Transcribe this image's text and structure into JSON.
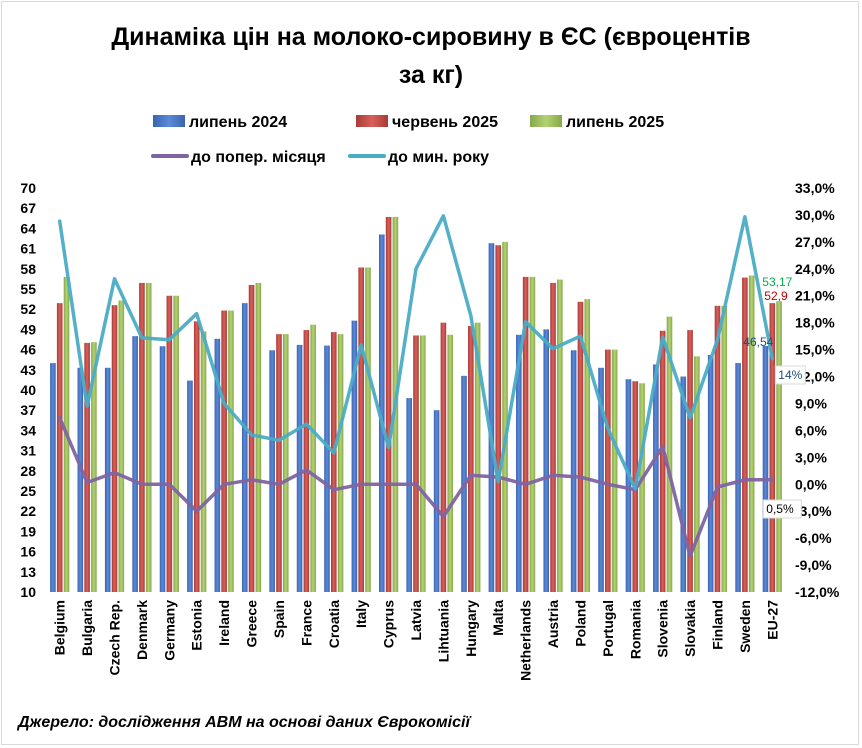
{
  "title_line1": "Динаміка цін на молоко-сировину в ЄС (євроцентів",
  "title_line2": "за кг)",
  "source": "Джерело: дослідження АВМ на основі даних Єврокомісії",
  "colors": {
    "jul2024": "#4472c4",
    "jun2025": "#c0504d",
    "jul2025": "#9bbb59",
    "mom": "#8064a2",
    "yoy": "#4bacc6"
  },
  "chart_data": {
    "type": "bar",
    "categories": [
      "Belgium",
      "Bulgaria",
      "Czech Rep.",
      "Denmark",
      "Germany",
      "Estonia",
      "Ireland",
      "Greece",
      "Spain",
      "France",
      "Croatia",
      "Italy",
      "Cyprus",
      "Latvia",
      "Lihtuania",
      "Hungary",
      "Malta",
      "Netherlands",
      "Austria",
      "Poland",
      "Portugal",
      "Romania",
      "Slovenia",
      "Slovakia",
      "Finland",
      "Sweden",
      "EU-27"
    ],
    "series": [
      {
        "name": "липень 2024",
        "type": "bar",
        "axis": "left",
        "values": [
          44.0,
          43.3,
          43.3,
          48.0,
          46.5,
          41.4,
          47.6,
          52.9,
          45.9,
          46.7,
          46.6,
          50.3,
          63.1,
          38.8,
          37.0,
          42.1,
          61.8,
          48.2,
          49.0,
          45.9,
          43.3,
          41.6,
          43.8,
          42.0,
          45.2,
          44.0,
          46.54
        ]
      },
      {
        "name": "червень 2025",
        "type": "bar",
        "axis": "left",
        "values": [
          52.9,
          47.0,
          52.6,
          55.9,
          54.0,
          50.2,
          51.8,
          55.6,
          48.3,
          48.9,
          48.6,
          58.2,
          65.7,
          48.1,
          50.0,
          49.5,
          61.5,
          56.8,
          55.9,
          53.1,
          46.0,
          41.3,
          48.8,
          48.9,
          52.5,
          56.7,
          52.9
        ]
      },
      {
        "name": "липень 2025",
        "type": "bar",
        "axis": "left",
        "values": [
          56.8,
          47.1,
          53.3,
          55.9,
          54.0,
          48.7,
          51.8,
          55.9,
          48.3,
          49.7,
          48.3,
          58.2,
          65.7,
          48.1,
          48.2,
          50.0,
          62.0,
          56.8,
          56.4,
          53.5,
          46.0,
          41.0,
          50.9,
          45.0,
          52.5,
          57.0,
          53.17
        ]
      },
      {
        "name": "до попер. місяця",
        "type": "line",
        "axis": "right",
        "values": [
          7.4,
          0.2,
          1.3,
          0.0,
          0.0,
          -3.0,
          0.0,
          0.5,
          0.0,
          1.6,
          -0.6,
          0.0,
          0.0,
          0.0,
          -3.6,
          1.0,
          0.8,
          0.0,
          1.0,
          0.8,
          0.0,
          -0.6,
          4.2,
          -8.0,
          -0.3,
          0.5,
          0.5
        ]
      },
      {
        "name": "до мин. року",
        "type": "line",
        "axis": "right",
        "values": [
          29.3,
          8.7,
          22.9,
          16.3,
          16.1,
          19.0,
          9.0,
          5.5,
          4.9,
          6.7,
          3.5,
          15.5,
          4.1,
          24.0,
          29.9,
          18.8,
          0.3,
          18.1,
          15.1,
          16.5,
          6.2,
          -0.5,
          16.4,
          7.4,
          16.1,
          29.8,
          14.0
        ]
      }
    ],
    "y_left": {
      "min": 10,
      "max": 70,
      "ticks": [
        10,
        13,
        16,
        19,
        22,
        25,
        28,
        31,
        34,
        37,
        40,
        43,
        46,
        49,
        52,
        55,
        58,
        61,
        64,
        67,
        70
      ]
    },
    "y_right": {
      "min": -12,
      "max": 33,
      "ticks": [
        -12,
        -9,
        -6,
        -3,
        0,
        3,
        6,
        9,
        12,
        15,
        18,
        21,
        24,
        27,
        30,
        33
      ]
    },
    "annotations": [
      {
        "text": "53,17",
        "series": 2,
        "index": 26,
        "color": "#00b050"
      },
      {
        "text": "52,9",
        "series": 1,
        "index": 26,
        "color": "#c00000"
      },
      {
        "text": "46,54",
        "series": 0,
        "index": 26,
        "color": "#1f4e79"
      },
      {
        "text": "14%",
        "series": 4,
        "index": 26,
        "color": "#1f4e79",
        "boxed": true
      },
      {
        "text": "0,5%",
        "series": 3,
        "index": 26,
        "color": "#000000",
        "boxed": true
      }
    ],
    "legend_position": "top",
    "grid": false
  },
  "right_tick_labels": [
    "-12,0%",
    "-9,0%",
    "-6,0%",
    "-3,0%",
    "0,0%",
    "3,0%",
    "6,0%",
    "9,0%",
    "12,0%",
    "15,0%",
    "18,0%",
    "21,0%",
    "24,0%",
    "27,0%",
    "30,0%",
    "33,0%"
  ]
}
